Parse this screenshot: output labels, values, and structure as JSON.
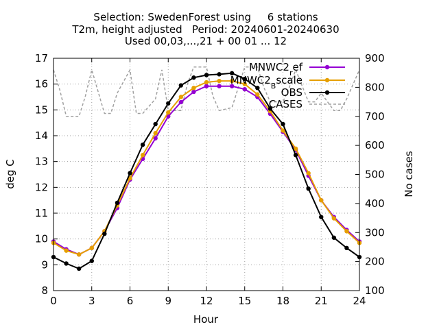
{
  "title": {
    "line1": "Selection: SwedenForest using     6 stations",
    "line2": "T2m, height adjusted   Period: 20240601-20240630",
    "line3": "Used 00,03,...,21 + 00 01 ... 12"
  },
  "axes": {
    "xlabel": "Hour",
    "ylabel_left": "deg C",
    "ylabel_right": "No cases"
  },
  "legend": {
    "items": [
      "MNWC2_ref",
      "MNWC2_Bscale",
      "OBS",
      "CASES"
    ],
    "position": "top-right"
  },
  "colors": {
    "MNWC2_ref": "#9400d3",
    "MNWC2_Bscale": "#e69f00",
    "OBS": "#000000",
    "CASES": "#a0a0a0"
  },
  "chart_data": {
    "type": "line",
    "title": "Selection: SwedenForest using 6 stations / T2m, height adjusted Period: 20240601-20240630 / Used 00,03,...,21 + 00 01 ... 12",
    "xlabel": "Hour",
    "ylabel": "deg C",
    "y2label": "No cases",
    "xlim": [
      0,
      24
    ],
    "ylim": [
      8,
      17
    ],
    "y2lim": [
      100,
      900
    ],
    "xticks": [
      0,
      3,
      6,
      9,
      12,
      15,
      18,
      21,
      24
    ],
    "yticks": [
      8,
      9,
      10,
      11,
      12,
      13,
      14,
      15,
      16,
      17
    ],
    "y2ticks": [
      100,
      200,
      300,
      400,
      500,
      600,
      700,
      800,
      900
    ],
    "grid": true,
    "legend_position": "top-right",
    "x": [
      0,
      1,
      2,
      3,
      4,
      5,
      6,
      7,
      8,
      9,
      10,
      11,
      12,
      13,
      14,
      15,
      16,
      17,
      18,
      19,
      20,
      21,
      22,
      23,
      24
    ],
    "series": [
      {
        "name": "MNWC2_ref",
        "axis": "left",
        "marker": true,
        "values": [
          9.9,
          9.6,
          9.4,
          9.65,
          10.3,
          11.2,
          12.3,
          13.1,
          13.9,
          14.75,
          15.3,
          15.7,
          15.92,
          15.92,
          15.92,
          15.8,
          15.5,
          14.85,
          14.15,
          13.45,
          12.45,
          11.5,
          10.85,
          10.35,
          9.9
        ]
      },
      {
        "name": "MNWC2_Bscale",
        "axis": "left",
        "marker": true,
        "values": [
          9.85,
          9.55,
          9.4,
          9.65,
          10.3,
          11.3,
          12.35,
          13.25,
          14.1,
          14.9,
          15.5,
          15.85,
          16.07,
          16.12,
          16.12,
          16.0,
          15.6,
          14.95,
          14.2,
          13.5,
          12.55,
          11.5,
          10.8,
          10.3,
          9.85
        ]
      },
      {
        "name": "OBS",
        "axis": "left",
        "marker": true,
        "values": [
          9.3,
          9.05,
          8.85,
          9.15,
          10.2,
          11.4,
          12.55,
          13.65,
          14.45,
          15.25,
          15.95,
          16.25,
          16.35,
          16.38,
          16.42,
          16.2,
          15.85,
          15.05,
          14.45,
          13.25,
          11.95,
          10.85,
          10.05,
          9.65,
          9.3
        ]
      },
      {
        "name": "CASES",
        "axis": "right",
        "marker": false,
        "dashed": true,
        "x": [
          0,
          0.5,
          1,
          2,
          2.5,
          3,
          4,
          4.5,
          5,
          6,
          6.5,
          7,
          8,
          8.5,
          9,
          10,
          10.5,
          11,
          12,
          12.5,
          13,
          14,
          14.5,
          15,
          16,
          16.5,
          17,
          18,
          18.5,
          19,
          20,
          20.5,
          21,
          22,
          22.5,
          23,
          24
        ],
        "values": [
          860,
          790,
          700,
          700,
          770,
          860,
          710,
          710,
          780,
          860,
          710,
          710,
          760,
          860,
          720,
          720,
          810,
          870,
          870,
          770,
          720,
          730,
          800,
          870,
          870,
          800,
          750,
          750,
          800,
          860,
          750,
          750,
          780,
          720,
          720,
          760,
          860
        ]
      }
    ]
  }
}
